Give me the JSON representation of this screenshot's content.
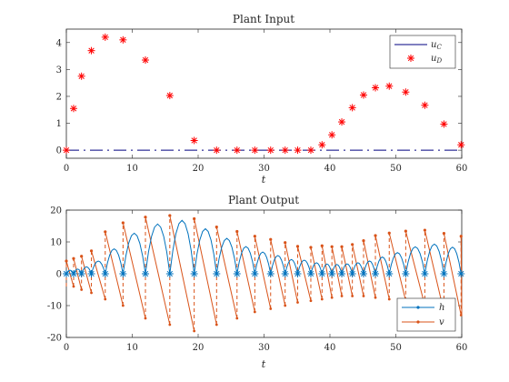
{
  "chart_data": [
    {
      "type": "scatter",
      "title": "Plant Input",
      "xlabel": "t",
      "ylabel": "",
      "xlim": [
        0,
        60
      ],
      "ylim": [
        -0.3,
        4.5
      ],
      "xticks": [
        0,
        10,
        20,
        30,
        40,
        50,
        60
      ],
      "yticks": [
        0,
        1,
        2,
        3,
        4
      ],
      "grid": false,
      "legend_position": "top-right",
      "series": [
        {
          "name": "u",
          "name_sub": "C",
          "style": "dash-dot line",
          "color": "#000080",
          "x": [
            0,
            60
          ],
          "y": [
            0,
            0
          ]
        },
        {
          "name": "u",
          "name_sub": "D",
          "style": "red asterisk markers",
          "color": "#ff0000",
          "x": [
            0,
            1.1,
            2.3,
            3.8,
            5.9,
            8.6,
            12.0,
            15.7,
            19.4,
            22.8,
            25.9,
            28.6,
            31.0,
            33.2,
            35.1,
            37.1,
            38.8,
            40.3,
            41.8,
            43.4,
            45.1,
            46.9,
            49.0,
            51.5,
            54.4,
            57.3,
            59.9
          ],
          "y": [
            0.0,
            1.55,
            2.75,
            3.7,
            4.2,
            4.1,
            3.35,
            2.03,
            0.36,
            0.0,
            0.0,
            0.0,
            0.0,
            0.0,
            0.0,
            0.0,
            0.2,
            0.57,
            1.05,
            1.58,
            2.05,
            2.32,
            2.38,
            2.16,
            1.67,
            0.97,
            0.2
          ]
        }
      ]
    },
    {
      "type": "line",
      "title": "Plant Output",
      "xlabel": "t",
      "ylabel": "",
      "xlim": [
        0,
        60
      ],
      "ylim": [
        -20,
        20
      ],
      "xticks": [
        0,
        10,
        20,
        30,
        40,
        50,
        60
      ],
      "yticks": [
        -20,
        -10,
        0,
        10,
        20
      ],
      "grid": false,
      "legend_position": "bottom-right",
      "series": [
        {
          "name": "h",
          "color": "#0072bd",
          "marker_at_samples": 0
        },
        {
          "name": "v",
          "color": "#d95319",
          "pre_jump": [
            -4,
            -4,
            -5,
            -6,
            -8,
            -10,
            -14,
            -16,
            -18,
            -16,
            -14,
            -12,
            -11,
            -10,
            -9,
            -8.5,
            -8,
            -7.5,
            -7,
            -7,
            -7,
            -7.5,
            -8,
            -8.5,
            -10,
            -12,
            -13
          ],
          "post_jump": [
            4,
            4.8,
            5.5,
            7.2,
            13.2,
            16,
            17.8,
            18.3,
            17.3,
            14.7,
            13.3,
            11.8,
            10.8,
            9.8,
            8.6,
            8.3,
            8.8,
            8.5,
            8.5,
            9.2,
            10.4,
            12,
            12.8,
            13.4,
            13.7,
            12.7,
            11.8
          ]
        }
      ]
    }
  ]
}
